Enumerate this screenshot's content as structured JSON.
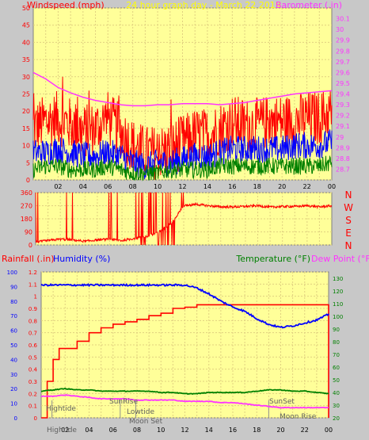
{
  "header": {
    "left": "Windspeed (mph)",
    "center": "24 hour graph day - March 22 2019",
    "right": "Barometer (.in)"
  },
  "compass": [
    "N",
    "W",
    "S",
    "E",
    "N"
  ],
  "bottom_header": {
    "rainfall": "Rainfall (.in)",
    "humidity": "Humidity (%)",
    "temperature": "Temperature (°F)",
    "dewpoint": "Dew Point (°F)"
  },
  "events": {
    "hightide1": "Hightide",
    "sunrise": "SunRise",
    "lowtide": "Lowtide",
    "moonset": "Moon Set",
    "hightide2": "Hightide",
    "sunset": "SunSet",
    "moonrise": "Moon Rise"
  },
  "colors": {
    "plot_bg": "#ffff99",
    "page_bg": "#c8c8c8",
    "header_yellow": "#ffff00",
    "magenta": "#ff33ff",
    "red": "#ff0000",
    "blue": "#0000ff",
    "green": "#008000",
    "grid": "#e0d080"
  },
  "chart_data": [
    {
      "type": "line",
      "title": "24 hour graph day - March 22 2019",
      "ylabel": "Windspeed (mph)",
      "y2label": "Barometer (.in)",
      "x_ticks": [
        "02",
        "04",
        "06",
        "08",
        "10",
        "12",
        "14",
        "16",
        "18",
        "20",
        "22",
        "00"
      ],
      "ylim": [
        0,
        50
      ],
      "y_ticks": [
        0,
        5,
        10,
        15,
        20,
        25,
        30,
        35,
        40,
        45,
        50
      ],
      "y2lim": [
        28.6,
        30.2
      ],
      "y2_ticks": [
        "28.7",
        "28.8",
        "28.9",
        "29",
        "29.1",
        "29.2",
        "29.3",
        "29.4",
        "29.5",
        "29.6",
        "29.7",
        "29.8",
        "29.9",
        "30",
        "30.1"
      ],
      "series": [
        {
          "role": "gust",
          "color": "#ff0000",
          "hours": [
            0,
            1,
            2,
            3,
            4,
            5,
            6,
            7,
            8,
            9,
            10,
            11,
            12,
            13,
            14,
            15,
            16,
            17,
            18,
            19,
            20,
            21,
            22,
            23,
            24
          ],
          "values": [
            15,
            17,
            18,
            16,
            14,
            15,
            18,
            14,
            10,
            8,
            8,
            9,
            11,
            13,
            13,
            15,
            17,
            16,
            16,
            17,
            17,
            17,
            18,
            18,
            20
          ]
        },
        {
          "role": "average",
          "color": "#0000ff",
          "hours": [
            0,
            1,
            2,
            3,
            4,
            5,
            6,
            7,
            8,
            9,
            10,
            11,
            12,
            13,
            14,
            15,
            16,
            17,
            18,
            19,
            20,
            21,
            22,
            23,
            24
          ],
          "values": [
            8,
            8,
            9,
            8,
            7,
            7,
            8,
            7,
            5,
            4,
            5,
            5,
            6,
            7,
            7,
            8,
            9,
            9,
            9,
            9,
            9,
            10,
            10,
            10,
            11
          ]
        },
        {
          "role": "low",
          "color": "#008000",
          "hours": [
            0,
            1,
            2,
            3,
            4,
            5,
            6,
            7,
            8,
            9,
            10,
            11,
            12,
            13,
            14,
            15,
            16,
            17,
            18,
            19,
            20,
            21,
            22,
            23,
            24
          ],
          "values": [
            3,
            4,
            4,
            3,
            3,
            3,
            4,
            3,
            2,
            2,
            2,
            3,
            3,
            3,
            3,
            4,
            4,
            4,
            4,
            4,
            4,
            4,
            4,
            4,
            5
          ]
        },
        {
          "role": "barometer",
          "color": "#ff33ff",
          "axis": "right",
          "hours": [
            0,
            1,
            2,
            3,
            4,
            5,
            6,
            7,
            8,
            9,
            10,
            11,
            12,
            13,
            14,
            15,
            16,
            17,
            18,
            19,
            20,
            21,
            22,
            23,
            24
          ],
          "values": [
            29.6,
            29.54,
            29.46,
            29.41,
            29.37,
            29.34,
            29.32,
            29.3,
            29.29,
            29.29,
            29.3,
            29.3,
            29.31,
            29.31,
            29.31,
            29.3,
            29.31,
            29.32,
            29.34,
            29.36,
            29.38,
            29.4,
            29.41,
            29.42,
            29.43
          ]
        }
      ]
    },
    {
      "type": "line",
      "ylim": [
        0,
        360
      ],
      "y_ticks": [
        0,
        90,
        180,
        270,
        360
      ],
      "series": [
        {
          "role": "wind_direction",
          "color": "#ff0000",
          "hours": [
            0,
            1,
            2,
            3,
            4,
            5,
            6,
            7,
            8,
            9,
            10,
            11,
            12,
            13,
            14,
            15,
            16,
            17,
            18,
            19,
            20,
            21,
            22,
            23,
            24
          ],
          "values": [
            20,
            30,
            40,
            35,
            25,
            35,
            40,
            30,
            45,
            60,
            90,
            150,
            270,
            280,
            270,
            262,
            262,
            265,
            270,
            260,
            265,
            265,
            270,
            262,
            270
          ]
        }
      ]
    },
    {
      "type": "line",
      "x_ticks": [
        "02",
        "04",
        "06",
        "08",
        "10",
        "12",
        "14",
        "16",
        "18",
        "20",
        "22",
        "00"
      ],
      "rain_ylim": [
        0,
        1.2
      ],
      "rain_ticks": [
        "0",
        "0.1",
        "0.2",
        "0.3",
        "0.4",
        "0.5",
        "0.6",
        "0.7",
        "0.8",
        "0.9",
        "1",
        "1.1",
        "1.2"
      ],
      "humidity_ylim": [
        0,
        100
      ],
      "humidity_ticks": [
        0,
        10,
        20,
        30,
        40,
        50,
        60,
        70,
        80,
        90,
        100
      ],
      "temp_ylim": [
        20,
        135
      ],
      "temp_ticks": [
        20,
        30,
        40,
        50,
        60,
        70,
        80,
        90,
        100,
        110,
        120,
        130
      ],
      "series": [
        {
          "name": "Rainfall (.in)",
          "color": "#ff0000",
          "axis": "rain",
          "hours": [
            0,
            0.5,
            1,
            1.5,
            2,
            3,
            4,
            5,
            6,
            7,
            8,
            9,
            10,
            11,
            12,
            13,
            14,
            15,
            16,
            17,
            18,
            19,
            20,
            21,
            22,
            23,
            24
          ],
          "values": [
            0,
            0.3,
            0.48,
            0.57,
            0.57,
            0.63,
            0.7,
            0.74,
            0.77,
            0.79,
            0.81,
            0.84,
            0.86,
            0.9,
            0.91,
            0.93,
            0.93,
            0.93,
            0.93,
            0.93,
            0.93,
            0.93,
            0.93,
            0.93,
            0.93,
            0.93,
            0.93
          ]
        },
        {
          "name": "Humidity (%)",
          "color": "#0000ff",
          "axis": "humidity",
          "hours": [
            0,
            1,
            2,
            3,
            4,
            5,
            6,
            7,
            8,
            9,
            10,
            11,
            12,
            13,
            14,
            15,
            16,
            17,
            18,
            19,
            20,
            21,
            22,
            23,
            24
          ],
          "values": [
            91,
            91,
            91,
            91,
            91,
            91,
            91,
            91,
            91,
            91,
            91,
            91,
            91,
            89,
            85,
            80,
            76,
            73,
            68,
            64,
            62,
            63,
            65,
            67,
            71
          ]
        },
        {
          "name": "Temperature (°F)",
          "color": "#008000",
          "axis": "temp",
          "hours": [
            0,
            1,
            2,
            3,
            4,
            5,
            6,
            7,
            8,
            9,
            10,
            11,
            12,
            13,
            14,
            15,
            16,
            17,
            18,
            19,
            20,
            21,
            22,
            23,
            24
          ],
          "values": [
            41,
            42,
            43,
            42,
            42,
            41,
            41,
            41,
            41,
            41,
            40,
            40,
            39,
            39,
            40,
            40,
            40,
            40,
            41,
            42,
            42,
            41,
            41,
            40,
            39
          ]
        },
        {
          "name": "Dew Point (°F)",
          "color": "#ff33ff",
          "axis": "temp",
          "hours": [
            0,
            1,
            2,
            3,
            4,
            5,
            6,
            7,
            8,
            9,
            10,
            11,
            12,
            13,
            14,
            15,
            16,
            17,
            18,
            19,
            20,
            21,
            22,
            23,
            24
          ],
          "values": [
            37,
            37,
            38,
            37,
            36,
            35,
            35,
            35,
            34,
            34,
            34,
            34,
            33,
            33,
            33,
            32,
            32,
            31,
            30,
            29,
            28,
            28,
            28,
            28,
            28
          ]
        }
      ]
    }
  ]
}
